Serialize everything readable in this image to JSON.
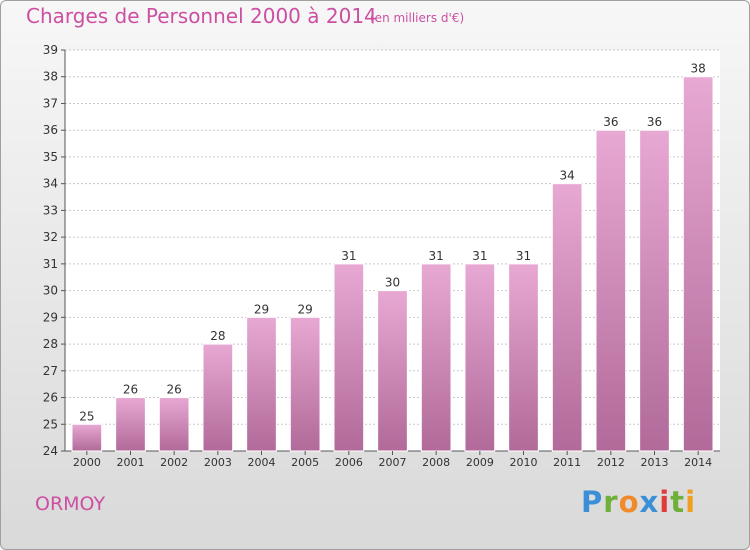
{
  "header": {
    "title": "Charges de Personnel 2000 à 2014",
    "subtitle": "(en milliers d'€)"
  },
  "footer": {
    "commune": "ORMOY",
    "brand_letters": [
      "P",
      "r",
      "o",
      "x",
      "i",
      "t",
      "i"
    ]
  },
  "colors": {
    "bar_top": "#e8a8d4",
    "bar_bottom": "#b16a99",
    "title": "#cc4fa2",
    "brand": [
      "#3a8fd6",
      "#6fb03a",
      "#f08a2a",
      "#3a8fd6",
      "#e03a3a",
      "#6fb03a",
      "#f0a020"
    ]
  },
  "chart_data": {
    "type": "bar",
    "categories": [
      "2000",
      "2001",
      "2002",
      "2003",
      "2004",
      "2005",
      "2006",
      "2007",
      "2008",
      "2009",
      "2010",
      "2011",
      "2012",
      "2013",
      "2014"
    ],
    "values": [
      25,
      26,
      26,
      28,
      29,
      29,
      31,
      30,
      31,
      31,
      31,
      34,
      36,
      36,
      38
    ],
    "title": "Charges de Personnel 2000 à 2014",
    "ylim": [
      24,
      39
    ],
    "yticks": [
      24,
      25,
      26,
      27,
      28,
      29,
      30,
      31,
      32,
      33,
      34,
      35,
      36,
      37,
      38,
      39
    ],
    "grid": true
  }
}
